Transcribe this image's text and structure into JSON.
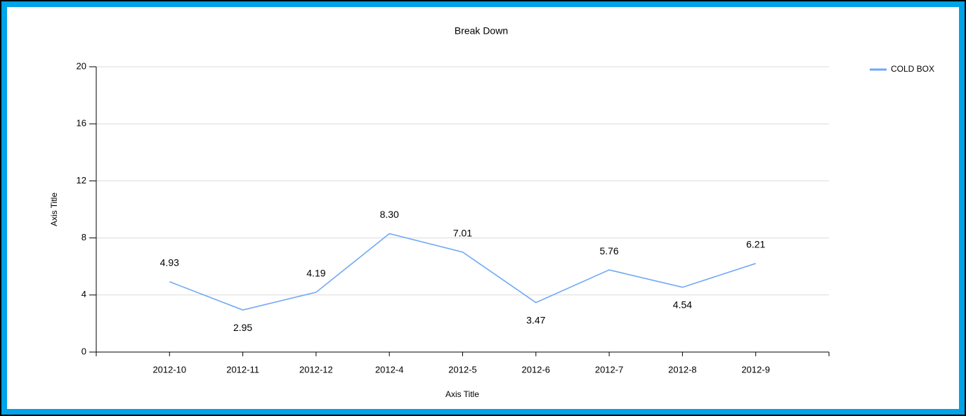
{
  "chart_data": {
    "type": "line",
    "title": "Break Down",
    "x_label": "Axis Title",
    "y_label": "Axis Title",
    "categories": [
      "2012-10",
      "2012-11",
      "2012-12",
      "2012-4",
      "2012-5",
      "2012-6",
      "2012-7",
      "2012-8",
      "2012-9"
    ],
    "series": [
      {
        "name": "COLD BOX",
        "color": "#6fa8f5",
        "values": [
          4.93,
          2.95,
          4.19,
          8.3,
          7.01,
          3.47,
          5.76,
          4.54,
          6.21
        ],
        "value_labels": [
          "4.93",
          "2.95",
          "4.19",
          "8.30",
          "7.01",
          "3.47",
          "5.76",
          "4.54",
          "6.21"
        ]
      }
    ],
    "ylim": [
      0,
      20
    ],
    "yticks": [
      0,
      4,
      8,
      12,
      16,
      20
    ],
    "grid": true,
    "legend": "top-right"
  }
}
